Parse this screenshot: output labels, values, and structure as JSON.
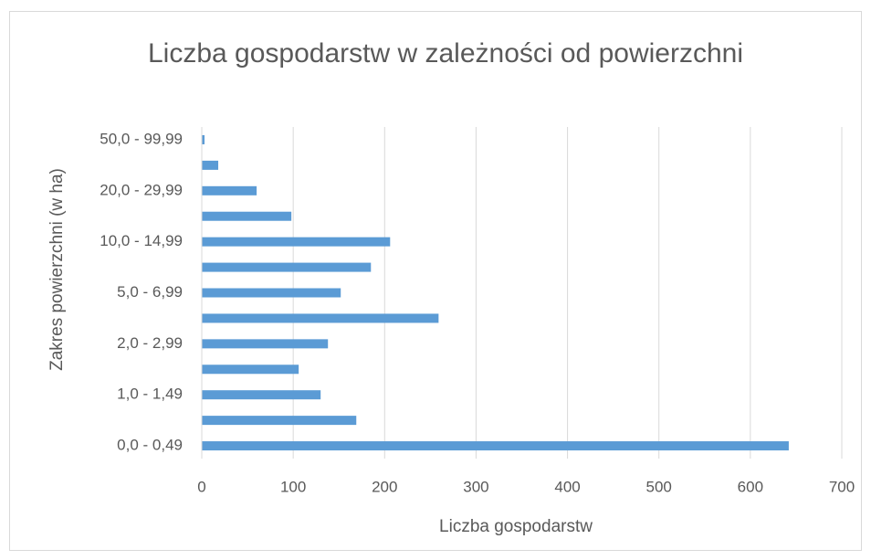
{
  "chart_data": {
    "type": "bar",
    "orientation": "horizontal",
    "title": "Liczba gospodarstw w zależności od powierzchni",
    "x_label": "Liczba gospodarstw",
    "y_label": "Zakres powierzchni (w ha)",
    "categories": [
      "0,0 - 0,49",
      null,
      "1,0 - 1,49",
      null,
      "2,0 - 2,99",
      null,
      "5,0 - 6,99",
      null,
      "10,0 - 14,99",
      null,
      "20,0 - 29,99",
      null,
      "50,0 - 99,99"
    ],
    "values": [
      642,
      169,
      130,
      106,
      138,
      259,
      152,
      185,
      206,
      98,
      60,
      18,
      3
    ],
    "color": "#5b9bd5",
    "xlim": [
      0,
      700
    ],
    "xticks": [
      0,
      100,
      200,
      300,
      400,
      500,
      600,
      700
    ],
    "grid": true
  }
}
